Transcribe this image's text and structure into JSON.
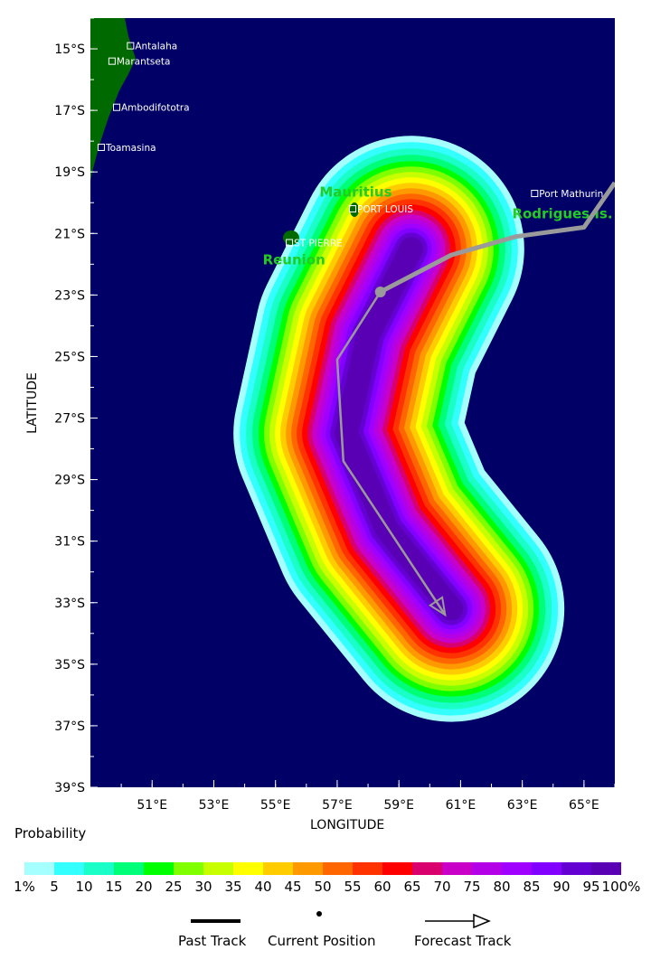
{
  "axes": {
    "xlabel": "LONGITUDE",
    "ylabel": "LATITUDE",
    "x_ticks": [
      "51°E",
      "53°E",
      "55°E",
      "57°E",
      "59°E",
      "61°E",
      "63°E",
      "65°E"
    ],
    "y_ticks": [
      "15°S",
      "17°S",
      "19°S",
      "21°S",
      "23°S",
      "25°S",
      "27°S",
      "29°S",
      "31°S",
      "33°S",
      "35°S",
      "37°S",
      "39°S"
    ],
    "lon_range": [
      49,
      66
    ],
    "lat_range": [
      -14,
      -39
    ]
  },
  "places": [
    {
      "name": "Antalaha",
      "lon": 50.3,
      "lat": -14.9
    },
    {
      "name": "Marantseta",
      "lon": 49.7,
      "lat": -15.4
    },
    {
      "name": "Ambodifototra",
      "lon": 49.85,
      "lat": -16.9
    },
    {
      "name": "Toamasina",
      "lon": 49.35,
      "lat": -18.2
    },
    {
      "name": "PORT LOUIS",
      "lon": 57.5,
      "lat": -20.2
    },
    {
      "name": "ST PIERRE",
      "lon": 55.45,
      "lat": -21.3
    },
    {
      "name": "Port Mathurin",
      "lon": 63.4,
      "lat": -19.7
    }
  ],
  "islands": [
    {
      "name": "Mauritius",
      "lon": 57.6,
      "lat": -20.3
    },
    {
      "name": "Reunion",
      "lon": 55.5,
      "lat": -21.1
    },
    {
      "name": "Rodrigues Is.",
      "lon": 63.4,
      "lat": -19.75
    }
  ],
  "region_labels": [
    {
      "text": "Mauritius",
      "lon": 57.6,
      "lat": -19.8
    },
    {
      "text": "Reunion",
      "lon": 55.6,
      "lat": -22.0
    },
    {
      "text": "Rodrigues Is.",
      "lon": 64.3,
      "lat": -20.5
    }
  ],
  "past_track": [
    [
      66,
      -19.35
    ],
    [
      65.0,
      -20.8
    ],
    [
      62.8,
      -21.1
    ],
    [
      60.7,
      -21.7
    ],
    [
      58.4,
      -22.9
    ]
  ],
  "current_position": {
    "lon": 58.4,
    "lat": -22.9
  },
  "forecast_track": [
    [
      58.4,
      -22.9
    ],
    [
      57.0,
      -25.1
    ],
    [
      57.2,
      -28.4
    ],
    [
      60.5,
      -33.4
    ]
  ],
  "probability_title": "Probability",
  "colorbar": {
    "colors": [
      "#a6ffff",
      "#33ffff",
      "#1affc8",
      "#00ff78",
      "#00ff00",
      "#80ff00",
      "#c8ff00",
      "#ffff00",
      "#ffcc00",
      "#ff9900",
      "#ff6600",
      "#ff3300",
      "#ff0000",
      "#d9006e",
      "#c800c8",
      "#b400e6",
      "#a000ff",
      "#8200ff",
      "#6400d2",
      "#5a00b4",
      "#64005f"
    ],
    "labels": [
      "1%",
      "5",
      "10",
      "15",
      "20",
      "25",
      "30",
      "35",
      "40",
      "45",
      "50",
      "55",
      "60",
      "65",
      "70",
      "75",
      "80",
      "85",
      "90",
      "95",
      "100%"
    ]
  },
  "legend": {
    "past_track": "Past Track",
    "current_position": "Current Position",
    "forecast_track": "Forecast Track"
  }
}
